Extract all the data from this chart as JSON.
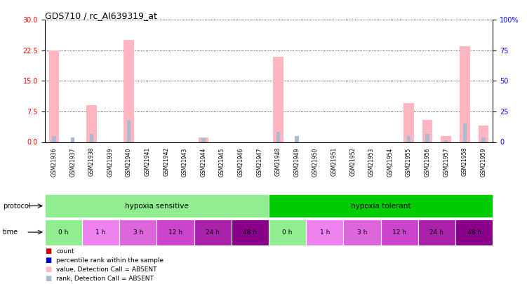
{
  "title": "GDS710 / rc_AI639319_at",
  "samples": [
    "GSM21936",
    "GSM21937",
    "GSM21938",
    "GSM21939",
    "GSM21940",
    "GSM21941",
    "GSM21942",
    "GSM21943",
    "GSM21944",
    "GSM21945",
    "GSM21946",
    "GSM21947",
    "GSM21948",
    "GSM21949",
    "GSM21950",
    "GSM21951",
    "GSM21952",
    "GSM21953",
    "GSM21954",
    "GSM21955",
    "GSM21956",
    "GSM21957",
    "GSM21958",
    "GSM21959"
  ],
  "pink_bars": [
    22.5,
    0.0,
    9.0,
    0.0,
    25.0,
    0.0,
    0.0,
    0.0,
    1.2,
    0.0,
    0.0,
    0.0,
    21.0,
    0.0,
    0.0,
    0.0,
    0.0,
    0.0,
    0.0,
    9.5,
    5.5,
    1.5,
    23.5,
    4.0
  ],
  "blue_bars": [
    1.5,
    1.2,
    2.0,
    0.0,
    5.5,
    0.0,
    0.0,
    0.0,
    1.0,
    0.0,
    0.0,
    0.0,
    2.5,
    1.5,
    0.0,
    0.0,
    0.0,
    0.0,
    0.0,
    1.5,
    2.0,
    0.5,
    4.5,
    1.2
  ],
  "ylim_left": [
    0,
    30
  ],
  "ylim_right": [
    0,
    100
  ],
  "yticks_left": [
    0,
    7.5,
    15,
    22.5,
    30
  ],
  "yticks_right": [
    0,
    25,
    50,
    75,
    100
  ],
  "protocol_sensitive_color": "#90EE90",
  "protocol_tolerant_color": "#00CC00",
  "time_colors": [
    "#90EE90",
    "#EE82EE",
    "#EE82EE",
    "#CC44CC",
    "#CC44CC",
    "#CC00CC",
    "#90EE90",
    "#EE82EE",
    "#EE82EE",
    "#CC44CC",
    "#CC44CC",
    "#CC00CC"
  ],
  "time_labels": [
    "0 h",
    "1 h",
    "3 h",
    "12 h",
    "24 h",
    "48 h",
    "0 h",
    "1 h",
    "3 h",
    "12 h",
    "24 h",
    "48 h"
  ],
  "pink_color": "#FFB6C1",
  "blue_color": "#AABBD0",
  "bg_color": "#FFFFFF"
}
